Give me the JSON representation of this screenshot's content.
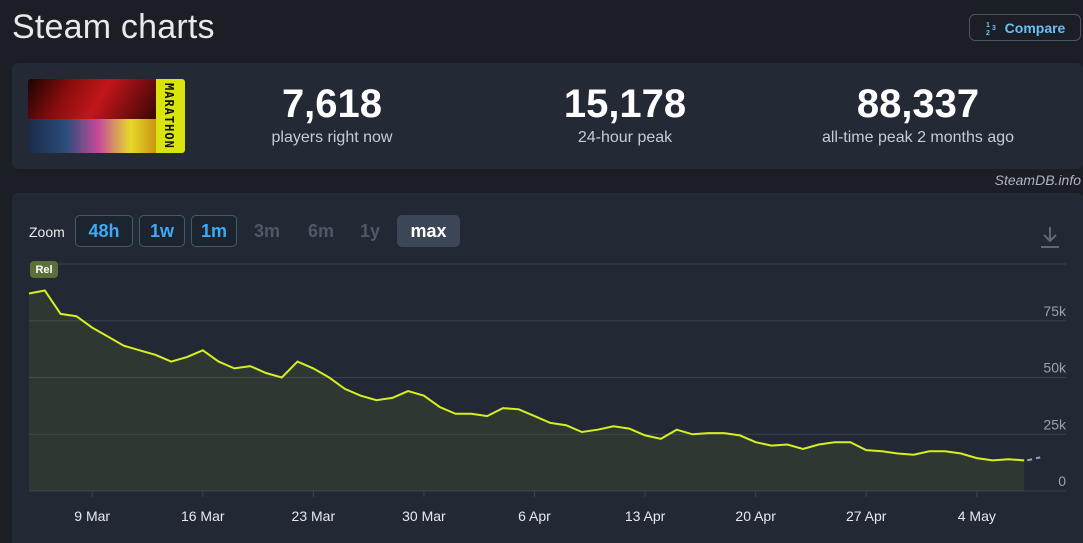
{
  "page": {
    "title": "Steam charts",
    "compare_label": "Compare",
    "compare_icon": "1/2/3"
  },
  "stats": [
    {
      "value": "7,618",
      "label": "players right now"
    },
    {
      "value": "15,178",
      "label": "24-hour peak"
    },
    {
      "value": "88,337",
      "label": "all-time peak 2 months ago"
    }
  ],
  "game_art": {
    "logo_text": "MARATHON"
  },
  "credit": "SteamDB.info",
  "zoom": {
    "label": "Zoom",
    "options": [
      {
        "label": "48h",
        "state": "active"
      },
      {
        "label": "1w",
        "state": "active"
      },
      {
        "label": "1m",
        "state": "active"
      },
      {
        "label": "3m",
        "state": "disabled"
      },
      {
        "label": "6m",
        "state": "disabled"
      },
      {
        "label": "1y",
        "state": "disabled"
      },
      {
        "label": "max",
        "state": "selected"
      }
    ]
  },
  "colors": {
    "line": "#d4f020",
    "grid": "#3a4150",
    "axis_text": "#9aa2ae",
    "accent": "#66c0f4",
    "marker": "#5a6f3a"
  },
  "chart_data": {
    "type": "line",
    "title": "",
    "xlabel": "",
    "ylabel": "",
    "x_ticks": [
      "9 Mar",
      "16 Mar",
      "23 Mar",
      "30 Mar",
      "6 Apr",
      "13 Apr",
      "20 Apr",
      "27 Apr",
      "4 May"
    ],
    "y_ticks": [
      {
        "value": 0,
        "label": "0"
      },
      {
        "value": 25000,
        "label": "25k"
      },
      {
        "value": 50000,
        "label": "50k"
      },
      {
        "value": 75000,
        "label": "75k"
      }
    ],
    "ylim": [
      0,
      100000
    ],
    "xlim": [
      "2025-03-05",
      "2025-05-08"
    ],
    "grid": true,
    "marker_label": "Rel",
    "series": [
      {
        "values": [
          [
            "2025-03-05",
            87000
          ],
          [
            "2025-03-06",
            88337
          ],
          [
            "2025-03-07",
            78000
          ],
          [
            "2025-03-08",
            77000
          ],
          [
            "2025-03-09",
            72000
          ],
          [
            "2025-03-10",
            68000
          ],
          [
            "2025-03-11",
            64000
          ],
          [
            "2025-03-12",
            62000
          ],
          [
            "2025-03-13",
            60000
          ],
          [
            "2025-03-14",
            57000
          ],
          [
            "2025-03-15",
            59000
          ],
          [
            "2025-03-16",
            62000
          ],
          [
            "2025-03-17",
            57000
          ],
          [
            "2025-03-18",
            54000
          ],
          [
            "2025-03-19",
            55000
          ],
          [
            "2025-03-20",
            52000
          ],
          [
            "2025-03-21",
            50000
          ],
          [
            "2025-03-22",
            57000
          ],
          [
            "2025-03-23",
            54000
          ],
          [
            "2025-03-24",
            50000
          ],
          [
            "2025-03-25",
            45000
          ],
          [
            "2025-03-26",
            42000
          ],
          [
            "2025-03-27",
            40000
          ],
          [
            "2025-03-28",
            41000
          ],
          [
            "2025-03-29",
            44000
          ],
          [
            "2025-03-30",
            42000
          ],
          [
            "2025-03-31",
            37000
          ],
          [
            "2025-04-01",
            34000
          ],
          [
            "2025-04-02",
            34000
          ],
          [
            "2025-04-03",
            33000
          ],
          [
            "2025-04-04",
            36500
          ],
          [
            "2025-04-05",
            36000
          ],
          [
            "2025-04-06",
            33000
          ],
          [
            "2025-04-07",
            30000
          ],
          [
            "2025-04-08",
            29000
          ],
          [
            "2025-04-09",
            26000
          ],
          [
            "2025-04-10",
            27000
          ],
          [
            "2025-04-11",
            28500
          ],
          [
            "2025-04-12",
            27500
          ],
          [
            "2025-04-13",
            24500
          ],
          [
            "2025-04-14",
            23000
          ],
          [
            "2025-04-15",
            27000
          ],
          [
            "2025-04-16",
            25000
          ],
          [
            "2025-04-17",
            25500
          ],
          [
            "2025-04-18",
            25500
          ],
          [
            "2025-04-19",
            24500
          ],
          [
            "2025-04-20",
            21500
          ],
          [
            "2025-04-21",
            20000
          ],
          [
            "2025-04-22",
            20500
          ],
          [
            "2025-04-23",
            18500
          ],
          [
            "2025-04-24",
            20500
          ],
          [
            "2025-04-25",
            21500
          ],
          [
            "2025-04-26",
            21500
          ],
          [
            "2025-04-27",
            18000
          ],
          [
            "2025-04-28",
            17500
          ],
          [
            "2025-04-29",
            16500
          ],
          [
            "2025-04-30",
            16000
          ],
          [
            "2025-05-01",
            17500
          ],
          [
            "2025-05-02",
            17500
          ],
          [
            "2025-05-03",
            16500
          ],
          [
            "2025-05-04",
            14500
          ],
          [
            "2025-05-05",
            13500
          ],
          [
            "2025-05-06",
            14000
          ],
          [
            "2025-05-07",
            13500
          ]
        ]
      }
    ]
  }
}
